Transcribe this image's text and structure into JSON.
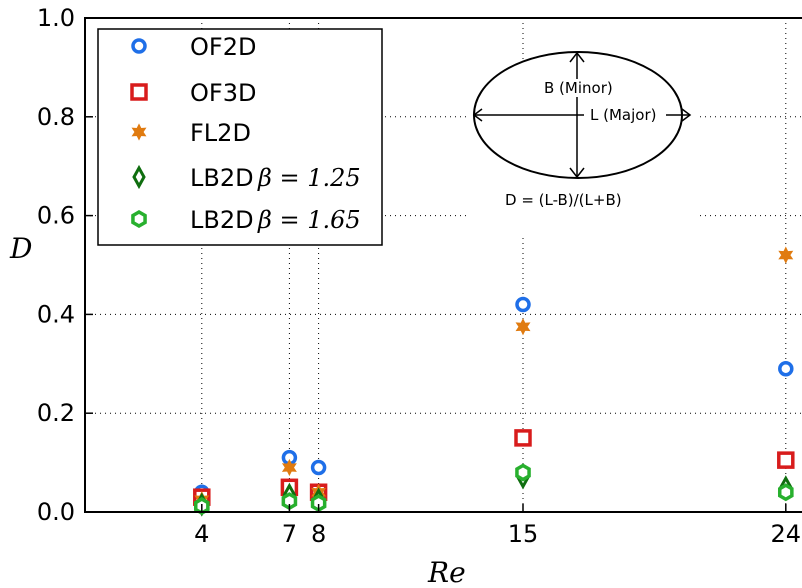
{
  "chart_data": {
    "type": "scatter",
    "title": "",
    "xlabel": "Re",
    "ylabel": "D",
    "xlim": [
      0,
      25
    ],
    "ylim": [
      0,
      1.0
    ],
    "xticks": [
      4,
      7,
      8,
      15,
      24
    ],
    "yticks": [
      0.0,
      0.2,
      0.4,
      0.6,
      0.8,
      1.0
    ],
    "ytick_labels": [
      "0.0",
      "0.2",
      "0.4",
      "0.6",
      "0.8",
      "1.0"
    ],
    "grid": "dotted vertical lines at x ticks, dotted horizontal lines at y ticks",
    "legend_position": "upper-left",
    "series": [
      {
        "name": "OF2D",
        "marker": "circle",
        "color": "#1f6fe8",
        "points": [
          {
            "x": 4,
            "y": 0.04
          },
          {
            "x": 7,
            "y": 0.11
          },
          {
            "x": 8,
            "y": 0.09
          },
          {
            "x": 15,
            "y": 0.42
          },
          {
            "x": 24,
            "y": 0.29
          }
        ]
      },
      {
        "name": "OF3D",
        "marker": "square",
        "color": "#d81c1c",
        "points": [
          {
            "x": 4,
            "y": 0.03
          },
          {
            "x": 7,
            "y": 0.05
          },
          {
            "x": 8,
            "y": 0.04
          },
          {
            "x": 15,
            "y": 0.15
          },
          {
            "x": 24,
            "y": 0.105
          }
        ]
      },
      {
        "name": "FL2D",
        "marker": "star",
        "color": "#e07b10",
        "points": [
          {
            "x": 4,
            "y": 0.025
          },
          {
            "x": 7,
            "y": 0.09
          },
          {
            "x": 8,
            "y": 0.04
          },
          {
            "x": 15,
            "y": 0.375
          },
          {
            "x": 24,
            "y": 0.52
          }
        ]
      },
      {
        "name": "LB2D",
        "math": "β = 1.25",
        "marker": "thin-diamond",
        "color": "#0f6e0f",
        "points": [
          {
            "x": 4,
            "y": 0.015
          },
          {
            "x": 7,
            "y": 0.035
          },
          {
            "x": 8,
            "y": 0.025
          },
          {
            "x": 15,
            "y": 0.07
          },
          {
            "x": 24,
            "y": 0.05
          }
        ]
      },
      {
        "name": "LB2D",
        "math": "β = 1.65",
        "marker": "hexagon",
        "color": "#28b02e",
        "points": [
          {
            "x": 4,
            "y": 0.012
          },
          {
            "x": 7,
            "y": 0.022
          },
          {
            "x": 8,
            "y": 0.018
          },
          {
            "x": 15,
            "y": 0.08
          },
          {
            "x": 24,
            "y": 0.04
          }
        ]
      }
    ],
    "inset": {
      "minor_label": "B (Minor)",
      "major_label": "L (Major)",
      "formula": "D = (L-B)/(L+B)"
    }
  }
}
